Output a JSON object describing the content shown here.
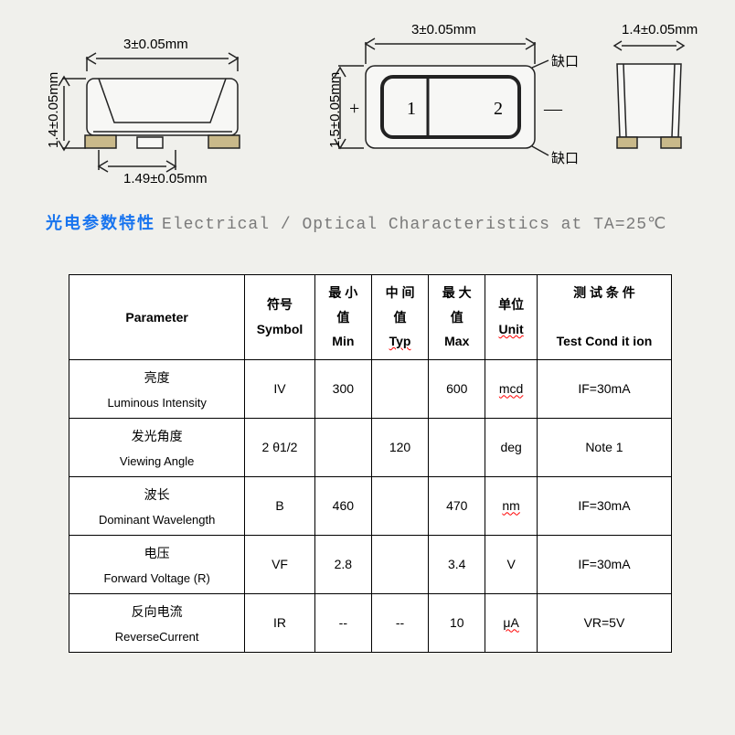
{
  "diagram": {
    "top_dim_1": "3±0.05mm",
    "top_dim_2": "3±0.05mm",
    "top_dim_3": "1.4±0.05mm",
    "left_dim_1": "1.4±0.05mm",
    "left_dim_2": "1.5±0.05mm",
    "bottom_dim": "1.49±0.05mm",
    "mark_top": "缺口",
    "mark_bot": "缺口",
    "pin1": "1",
    "pin2": "2",
    "plus": "+",
    "minus": "—",
    "stroke": "#222222",
    "fill_light": "#f7f7f5",
    "fill_gold": "#c9b98a"
  },
  "title": {
    "cn": "光电参数特性",
    "en": "Electrical / Optical Characteristics at TA=25℃"
  },
  "table": {
    "headers": {
      "param": "Parameter",
      "symbol_cn": "符号",
      "symbol_en": "Symbol",
      "min_cn": "最 小",
      "val_cn": "值",
      "min_en": "Min",
      "typ_cn": "中 间",
      "typ_en": "Typ",
      "max_cn": "最 大",
      "max_en": "Max",
      "unit_cn": "单位",
      "unit_en": "Unit",
      "tc_cn": "测 试 条 件",
      "tc_en": "Test Cond it ion"
    },
    "rows": [
      {
        "cn": "亮度",
        "en": "Luminous Intensity",
        "sym": "IV",
        "min": "300",
        "typ": "",
        "max": "600",
        "unit": "mcd",
        "tc": "IF=30mA",
        "unit_wavy": true
      },
      {
        "cn": "发光角度",
        "en": "Viewing Angle",
        "sym": "2 θ1/2",
        "min": "",
        "typ": "120",
        "max": "",
        "unit": "deg",
        "tc": "Note 1"
      },
      {
        "cn": "波长",
        "en": "Dominant Wavelength",
        "sym": "B",
        "min": "460",
        "typ": "",
        "max": "470",
        "unit": "nm",
        "tc": "IF=30mA",
        "unit_wavy": true
      },
      {
        "cn": "电压",
        "en": "Forward Voltage (R)",
        "sym": "VF",
        "min": "2.8",
        "typ": "",
        "max": "3.4",
        "unit": "V",
        "tc": "IF=30mA"
      },
      {
        "cn": "反向电流",
        "en": "ReverseCurrent",
        "sym": "IR",
        "min": "--",
        "typ": "--",
        "max": "10",
        "unit": "μA",
        "tc": "VR=5V",
        "unit_wavy": true
      }
    ]
  }
}
